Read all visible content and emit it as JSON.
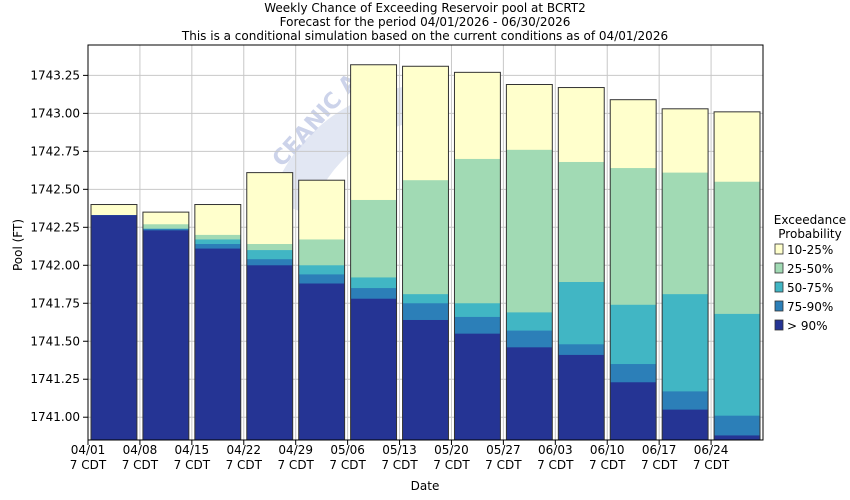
{
  "chart_data": {
    "type": "bar",
    "stacked": true,
    "title": "Weekly Chance of Exceeding Reservoir pool at BCRT2",
    "subtitle": [
      "Forecast for the period 04/01/2026 - 06/30/2026",
      "This is a conditional simulation based on the current conditions as of 04/01/2026"
    ],
    "xlabel": "Date",
    "ylabel": "Pool (FT)",
    "ylim": [
      1740.85,
      1743.45
    ],
    "yticks": [
      1741.0,
      1741.25,
      1741.5,
      1741.75,
      1742.0,
      1742.25,
      1742.5,
      1742.75,
      1743.0,
      1743.25
    ],
    "ytick_labels": [
      "1741.00",
      "1741.25",
      "1741.50",
      "1741.75",
      "1742.00",
      "1742.25",
      "1742.50",
      "1742.75",
      "1743.00",
      "1743.25"
    ],
    "categories": [
      "04/01",
      "04/08",
      "04/15",
      "04/22",
      "04/29",
      "05/06",
      "05/13",
      "05/20",
      "05/27",
      "06/03",
      "06/10",
      "06/17",
      "06/24"
    ],
    "category_sublabel": "7 CDT",
    "grid": true,
    "legend_title": [
      "Exceedance",
      "Probability"
    ],
    "legend_position": "right",
    "series": [
      {
        "name": "10-25%",
        "color": "#ffffcc",
        "tops": [
          1742.4,
          1742.35,
          1742.4,
          1742.61,
          1742.56,
          1743.32,
          1743.31,
          1743.27,
          1743.19,
          1743.17,
          1743.09,
          1743.03,
          1743.01
        ]
      },
      {
        "name": "25-50%",
        "color": "#a1dab4",
        "tops": [
          1742.33,
          1742.27,
          1742.2,
          1742.14,
          1742.17,
          1742.43,
          1742.56,
          1742.7,
          1742.76,
          1742.68,
          1742.64,
          1742.61,
          1742.55
        ]
      },
      {
        "name": "50-75%",
        "color": "#41b6c4",
        "tops": [
          1742.33,
          1742.24,
          1742.17,
          1742.1,
          1742.0,
          1741.92,
          1741.81,
          1741.75,
          1741.69,
          1741.89,
          1741.74,
          1741.81,
          1741.68
        ]
      },
      {
        "name": "75-90%",
        "color": "#2c7fb8",
        "tops": [
          1742.33,
          1742.24,
          1742.14,
          1742.04,
          1741.94,
          1741.85,
          1741.75,
          1741.66,
          1741.57,
          1741.48,
          1741.35,
          1741.17,
          1741.01
        ]
      },
      {
        "name": "> 90%",
        "color": "#253494",
        "tops": [
          1742.33,
          1742.23,
          1742.11,
          1742.0,
          1741.88,
          1741.78,
          1741.64,
          1741.55,
          1741.46,
          1741.41,
          1741.23,
          1741.05,
          1740.88
        ]
      }
    ],
    "watermark": "CEANIC A"
  }
}
